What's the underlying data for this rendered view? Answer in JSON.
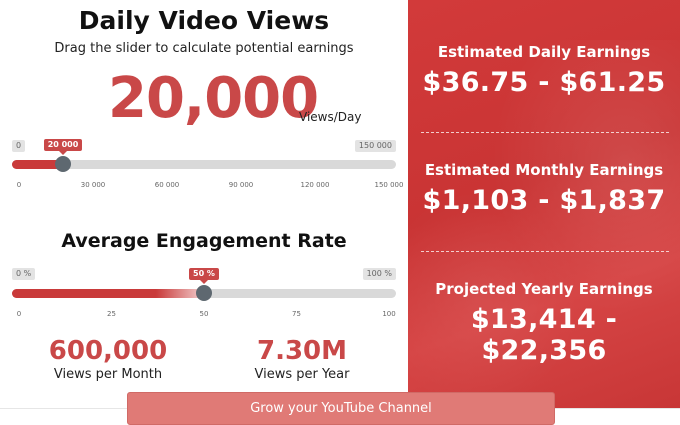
{
  "views": {
    "title": "Daily Video Views",
    "subtitle": "Drag the slider to calculate potential earnings",
    "value_display": "20,000",
    "unit": "Views/Day",
    "slider": {
      "value": 20000,
      "min": 0,
      "max": 150000,
      "min_label": "0",
      "max_label": "150 000",
      "value_label": "20 000",
      "ticks": [
        "0",
        "30 000",
        "60 000",
        "90 000",
        "120 000",
        "150 000"
      ]
    }
  },
  "engagement": {
    "title": "Average Engagement Rate",
    "slider": {
      "value": 50,
      "min": 0,
      "max": 100,
      "min_label": "0 %",
      "max_label": "100 %",
      "value_label": "50 %",
      "ticks": [
        "0",
        "25",
        "50",
        "75",
        "100"
      ]
    }
  },
  "stats": {
    "monthly": {
      "value": "600,000",
      "label": "Views per Month"
    },
    "yearly": {
      "value": "7.30M",
      "label": "Views per Year"
    }
  },
  "earnings": {
    "daily": {
      "label": "Estimated Daily Earnings",
      "value": "$36.75 - $61.25"
    },
    "monthly": {
      "label": "Estimated Monthly Earnings",
      "value": "$1,103 - $1,837"
    },
    "yearly": {
      "label": "Projected Yearly Earnings",
      "value": "$13,414 - $22,356"
    }
  },
  "cta": {
    "label": "Grow your YouTube Channel"
  },
  "colors": {
    "accent": "#c94848",
    "panel": "#cf3a3a",
    "knob": "#5e6870",
    "cta": "#e07a76"
  }
}
